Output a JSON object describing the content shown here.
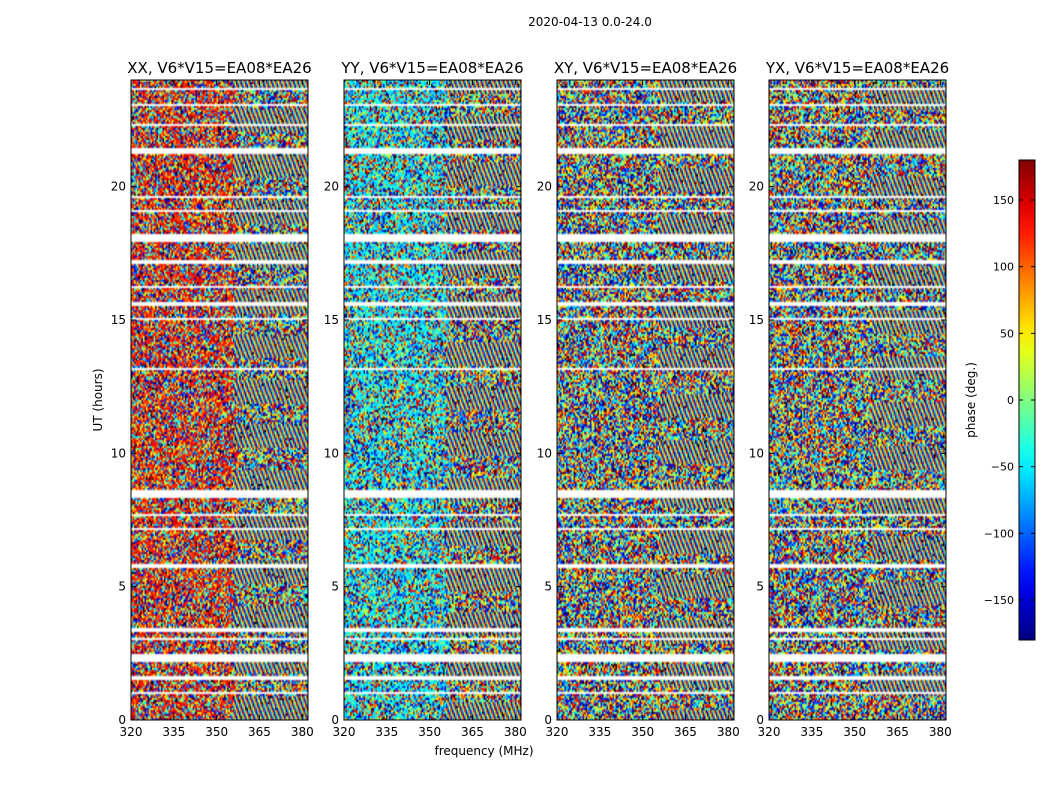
{
  "chart_data": {
    "type": "heatmap",
    "suptitle": "2020-04-13 0.0-24.0",
    "xlabel": "frequency (MHz)",
    "ylabel": "UT (hours)",
    "xlim": [
      320,
      382
    ],
    "ylim": [
      0,
      24
    ],
    "xticks": [
      320,
      335,
      350,
      365,
      380
    ],
    "yticks": [
      0,
      5,
      10,
      15,
      20
    ],
    "panels": [
      {
        "title": "XX, V6*V15=EA08*EA26",
        "bias": "red"
      },
      {
        "title": "YY, V6*V15=EA08*EA26",
        "bias": "cyan"
      },
      {
        "title": "XY, V6*V15=EA08*EA26",
        "bias": "none"
      },
      {
        "title": "YX, V6*V15=EA08*EA26",
        "bias": "none"
      }
    ],
    "flagged_gaps_hours": [
      [
        0.95,
        1.0
      ],
      [
        1.5,
        1.6
      ],
      [
        2.15,
        2.45
      ],
      [
        2.95,
        3.05
      ],
      [
        3.3,
        3.45
      ],
      [
        5.7,
        5.85
      ],
      [
        6.55,
        6.6
      ],
      [
        7.1,
        7.15
      ],
      [
        7.65,
        7.7
      ],
      [
        8.35,
        8.65
      ],
      [
        13.1,
        13.2
      ],
      [
        15.0,
        15.05
      ],
      [
        15.55,
        15.65
      ],
      [
        16.2,
        16.3
      ],
      [
        17.15,
        17.25
      ],
      [
        17.95,
        18.25
      ],
      [
        19.1,
        19.15
      ],
      [
        19.6,
        19.65
      ],
      [
        21.25,
        21.45
      ],
      [
        22.3,
        22.35
      ],
      [
        23.05,
        23.15
      ],
      [
        23.65,
        23.7
      ]
    ],
    "colorbar": {
      "label": "phase (deg.)",
      "range": [
        -180,
        180
      ],
      "ticks": [
        -150,
        -100,
        -50,
        0,
        50,
        100,
        150
      ],
      "colormap": "jet"
    }
  }
}
